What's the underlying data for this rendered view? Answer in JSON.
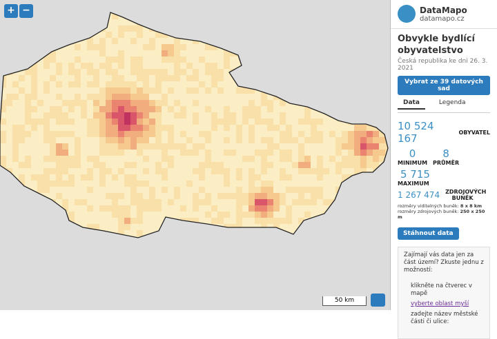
{
  "map": {
    "zoom_in": "+",
    "zoom_out": "−",
    "scale": "50 km"
  },
  "panel": {
    "brand": "DataMapo",
    "site": "datamapo.cz",
    "title": "Obvykle bydlící obyvatelstvo",
    "subtitle": "Česká republika ke dni 26. 3. 2021",
    "select_button": "Vybrat ze 39 datových sad",
    "tabs": [
      "Data",
      "Legenda"
    ],
    "total": {
      "value": "10 524 167",
      "label": "OBYVATEL"
    },
    "minimum": {
      "value": "0",
      "label": "MINIMUM"
    },
    "average": {
      "value": "8",
      "label": "PRŮMĚR"
    },
    "maximum": {
      "value": "5 715",
      "label": "MAXIMUM"
    },
    "source_cells": {
      "value": "1 267 474",
      "label": "ZDROJOVÝCH BUNĚK"
    },
    "notes": [
      {
        "label": "rozměry viditelných buněk:",
        "value": "8 x 8 km"
      },
      {
        "label": "rozměry zdrojových buněk:",
        "value": "250 x 250 m"
      }
    ],
    "download_button": "Stáhnout data",
    "info": {
      "text": "Zajímají vás data jen za část území? Zkuste jednu z možností:",
      "options": [
        "klikněte na čtverec v mapě",
        "vyberte oblast myší",
        "zadejte název městské části či ulice:"
      ]
    }
  }
}
